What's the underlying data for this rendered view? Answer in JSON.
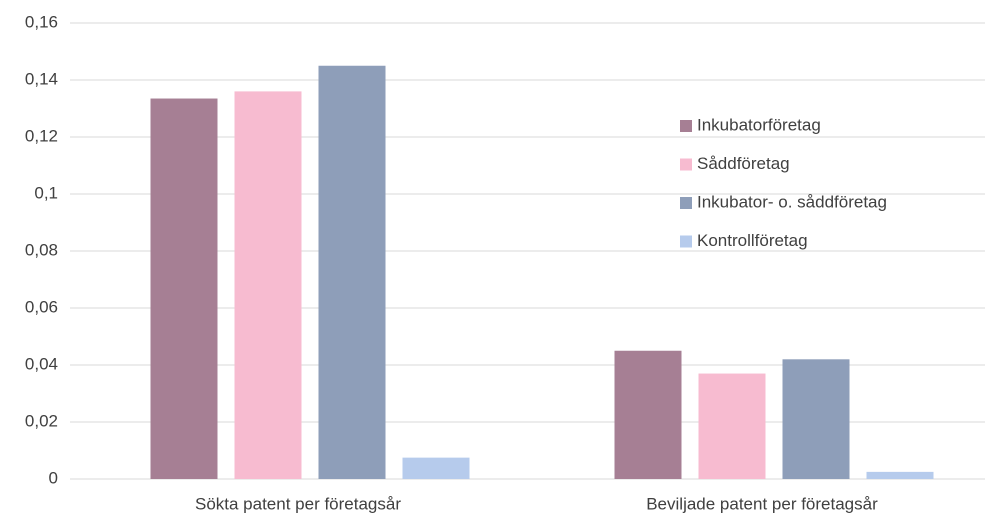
{
  "chart_data": {
    "type": "bar",
    "categories": [
      "Sökta patent per företagsår",
      "Beviljade patent per företagsår"
    ],
    "series": [
      {
        "name": "Inkubatorföretag",
        "color": "#a67f94",
        "values": [
          0.1335,
          0.045
        ]
      },
      {
        "name": "Såddföretag",
        "color": "#f7bbd0",
        "values": [
          0.136,
          0.037
        ]
      },
      {
        "name": "Inkubator- o. såddföretag",
        "color": "#8e9eb9",
        "values": [
          0.145,
          0.042
        ]
      },
      {
        "name": "Kontrollföretag",
        "color": "#b6cbec",
        "values": [
          0.0075,
          0.0025
        ]
      }
    ],
    "ylim": [
      0,
      0.16
    ],
    "yticks": [
      0,
      {
        "value": 0.02,
        "label": "0,02"
      },
      {
        "value": 0.04,
        "label": "0,04"
      },
      {
        "value": 0.06,
        "label": "0,06"
      },
      {
        "value": 0.08,
        "label": "0,08"
      },
      {
        "value": 0.1,
        "label": "0,1"
      },
      {
        "value": 0.12,
        "label": "0,12"
      },
      {
        "value": 0.14,
        "label": "0,14"
      },
      {
        "value": 0.16,
        "label": "0,16"
      }
    ],
    "grid": true
  }
}
